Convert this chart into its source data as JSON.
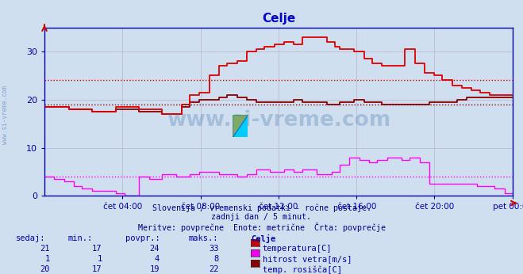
{
  "title": "Celje",
  "bg_color": "#d0dff0",
  "plot_bg_color": "#d0dff0",
  "grid_color": "#b8b8d0",
  "axis_color": "#0000aa",
  "title_color": "#0000cc",
  "subtitle_lines": [
    "Slovenija / vremenski podatki - ročne postaje.",
    "zadnji dan / 5 minut.",
    "Meritve: povprečne  Enote: metrične  Črta: povprečje"
  ],
  "ylim_min": 0,
  "ylim_max": 35,
  "yticks": [
    0,
    10,
    20,
    30
  ],
  "xtick_labels": [
    "čet 04:00",
    "čet 08:00",
    "čet 12:00",
    "čet 16:00",
    "čet 20:00",
    "pet 00:00"
  ],
  "xtick_positions": [
    0.1667,
    0.3333,
    0.5,
    0.6667,
    0.8333,
    1.0
  ],
  "temp_color": "#dd0000",
  "wind_color": "#ff00ff",
  "dewpoint_color": "#880000",
  "avg_temp": 24,
  "avg_wind": 4,
  "avg_dew": 19,
  "table_headers": [
    "sedaj:",
    "min.:",
    "povpr.:",
    "maks.:",
    "Celje"
  ],
  "table_rows": [
    [
      21,
      17,
      24,
      33,
      "temperatura[C]",
      "#cc0000"
    ],
    [
      1,
      1,
      4,
      8,
      "hitrost vetra[m/s]",
      "#ee00ee"
    ],
    [
      20,
      17,
      19,
      22,
      "temp. rosišča[C]",
      "#880000"
    ]
  ],
  "watermark": "www.si-vreme.com",
  "watermark_color": "#4477aa",
  "watermark_alpha": 0.3,
  "left_label": "www.si-vreme.com",
  "left_label_color": "#4477aa"
}
